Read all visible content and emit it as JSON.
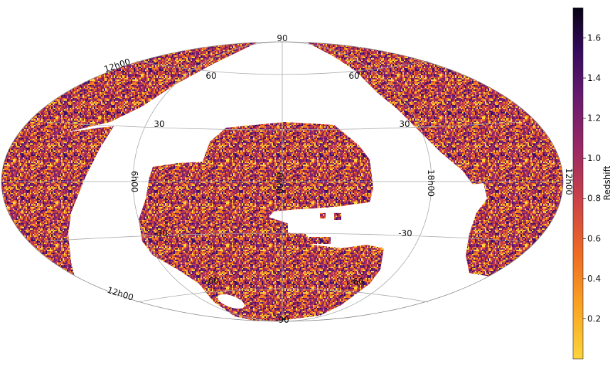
{
  "chart_data": {
    "type": "heatmap",
    "projection": "mollweide",
    "title": "",
    "colormap": "inferno_r",
    "colors": {
      "low": "#fcd43b",
      "mid_low": "#f47d1e",
      "mid": "#c03a4e",
      "mid_high": "#7a1f6e",
      "high": "#3b0f6b",
      "top": "#0b0520",
      "grid": "#a8a8a8",
      "outline": "#888888"
    },
    "latitude_labels": [
      "90",
      "60",
      "30",
      "-30",
      "-60",
      "-90"
    ],
    "latitude_labels_right": [
      "60",
      "30",
      "-30",
      "-60"
    ],
    "longitude_labels": {
      "left_upper": "12h00",
      "left_lower": "12h00",
      "left_meridian": "6h00",
      "center": "0h00",
      "right_meridian": "18h00",
      "right_edge": "12h00"
    },
    "colorbar": {
      "label": "Redshift",
      "range": [
        0.0,
        1.75
      ],
      "ticks": [
        "0.2",
        "0.4",
        "0.6",
        "0.8",
        "1.0",
        "1.2",
        "1.4",
        "1.6"
      ],
      "tick_values": [
        0.2,
        0.4,
        0.6,
        0.8,
        1.0,
        1.2,
        1.4,
        1.6
      ]
    },
    "footprint": {
      "north_cap": "north-galactic-region",
      "south_cap": "south-survey-region"
    }
  }
}
